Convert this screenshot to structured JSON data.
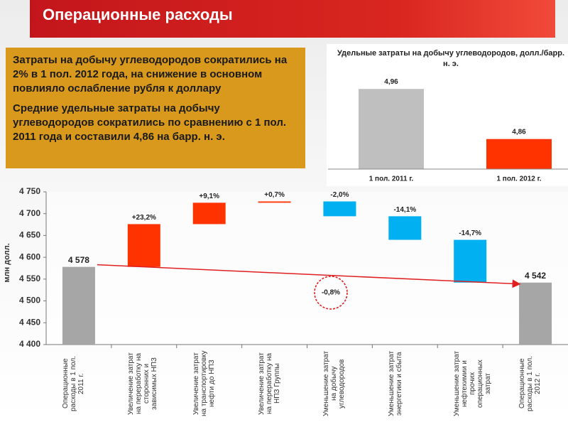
{
  "header": {
    "title": "Операционные расходы"
  },
  "textbox": {
    "paragraphs": [
      "Затраты на добычу углеводородов сократились на 2% в 1 пол. 2012 года, на снижение в основном повлияло ослабление рубля к доллару",
      "Средние удельные затраты на добычу углеводородов сократились по сравнению с 1 пол. 2011 года и составили 4,86 на барр. н. э."
    ]
  },
  "chart_data": [
    {
      "type": "bar",
      "title": "Удельные затраты на добычу углеводородов, долл./барр. н. э.",
      "categories": [
        "1 пол. 2011 г.",
        "1 пол. 2012 г."
      ],
      "values": [
        4.96,
        4.86
      ],
      "value_labels": [
        "4,96",
        "4,86"
      ],
      "colors": [
        "#bfbfbf",
        "#ff3300"
      ],
      "ylim": [
        4.8,
        5.0
      ]
    },
    {
      "type": "waterfall",
      "ylabel": "млн долл.",
      "categories": [
        "Операционные расходы в 1 пол. 2011 г.",
        "Увеличение затрат на переработку на сторонних и зависимых НПЗ",
        "Увеличение затрат на транспортировку нефти до НПЗ",
        "Увеличение затрат на переработку на НПЗ Группы",
        "Уменьшение затрат на добычу углеводородов",
        "Уменьшение затрат энергетики и сбыта",
        "Уменьшение затрат нефтехимии и прочих операционных затрат",
        "Операционные расходы в 1 пол. 2012 г."
      ],
      "values": [
        4578,
        98,
        49,
        3,
        -34,
        -54,
        -98,
        4542
      ],
      "value_labels": [
        "4 578",
        null,
        null,
        null,
        null,
        null,
        null,
        "4 542"
      ],
      "change_labels": [
        null,
        "+23,2%",
        "+9,1%",
        "+0,7%",
        "-2,0%",
        "-14,1%",
        "-14,7%",
        null
      ],
      "total_indices": [
        0,
        7
      ],
      "total_color": "#a6a6a6",
      "increase_color": "#ff3300",
      "decrease_color": "#00b0f0",
      "annotation": "-0,8%",
      "ylim": [
        4400,
        4750
      ],
      "yticks": [
        {
          "value": 4400,
          "label": "4 400"
        },
        {
          "value": 4450,
          "label": "4 450"
        },
        {
          "value": 4500,
          "label": "4 500"
        },
        {
          "value": 4550,
          "label": "4 550"
        },
        {
          "value": 4600,
          "label": "4 600"
        },
        {
          "value": 4650,
          "label": "4 650"
        },
        {
          "value": 4700,
          "label": "4 700"
        },
        {
          "value": 4750,
          "label": "4 750"
        }
      ]
    }
  ]
}
